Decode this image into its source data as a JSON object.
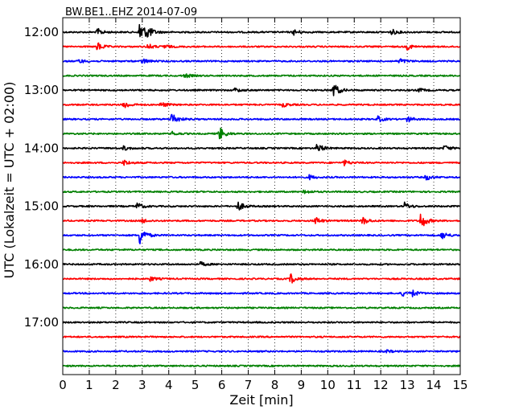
{
  "chart_data": {
    "type": "line",
    "title": "BW.BE1..EHZ 2014-07-09",
    "xlabel": "Zeit  [min]",
    "ylabel": "UTC (Lokalzeit = UTC + 02:00)",
    "xlim": [
      0,
      15
    ],
    "x_ticks": [
      0,
      1,
      2,
      3,
      4,
      5,
      6,
      7,
      8,
      9,
      10,
      11,
      12,
      13,
      14,
      15
    ],
    "y_ticks": [
      "12:00",
      "13:00",
      "14:00",
      "15:00",
      "16:00",
      "17:00"
    ],
    "grid": "vertical dotted",
    "color_cycle": [
      "#000000",
      "#ff0000",
      "#0000ff",
      "#008000"
    ],
    "series": [
      {
        "start": "12:00",
        "color": "#000000",
        "events": [
          [
            1.3,
            0.5
          ],
          [
            2.9,
            1.8
          ],
          [
            3.2,
            0.6
          ],
          [
            8.7,
            0.4
          ],
          [
            12.4,
            0.4
          ]
        ]
      },
      {
        "start": "12:15",
        "color": "#ff0000",
        "events": [
          [
            1.3,
            0.6
          ],
          [
            3.2,
            0.4
          ],
          [
            3.8,
            0.3
          ],
          [
            13.0,
            0.4
          ]
        ]
      },
      {
        "start": "12:30",
        "color": "#0000ff",
        "events": [
          [
            0.6,
            0.3
          ],
          [
            3.0,
            0.4
          ],
          [
            12.7,
            0.4
          ]
        ]
      },
      {
        "start": "12:45",
        "color": "#008000",
        "events": [
          [
            4.6,
            0.3
          ]
        ]
      },
      {
        "start": "13:00",
        "color": "#000000",
        "events": [
          [
            6.5,
            0.3
          ],
          [
            10.2,
            1.1
          ],
          [
            13.4,
            0.3
          ]
        ]
      },
      {
        "start": "13:15",
        "color": "#ff0000",
        "events": [
          [
            2.3,
            0.6
          ],
          [
            3.7,
            0.4
          ],
          [
            8.3,
            0.3
          ]
        ]
      },
      {
        "start": "13:30",
        "color": "#0000ff",
        "events": [
          [
            4.1,
            1.0
          ],
          [
            11.9,
            0.4
          ],
          [
            13.0,
            0.4
          ]
        ]
      },
      {
        "start": "13:45",
        "color": "#008000",
        "events": [
          [
            4.1,
            0.3
          ],
          [
            5.9,
            1.0
          ]
        ]
      },
      {
        "start": "14:00",
        "color": "#000000",
        "events": [
          [
            2.3,
            0.3
          ],
          [
            9.6,
            0.7
          ],
          [
            14.4,
            0.4
          ]
        ]
      },
      {
        "start": "14:15",
        "color": "#ff0000",
        "events": [
          [
            2.3,
            0.4
          ],
          [
            10.6,
            0.4
          ]
        ]
      },
      {
        "start": "14:30",
        "color": "#0000ff",
        "events": [
          [
            9.3,
            0.3
          ],
          [
            13.7,
            0.4
          ]
        ]
      },
      {
        "start": "14:45",
        "color": "#008000",
        "events": [
          [
            9.1,
            0.3
          ]
        ]
      },
      {
        "start": "15:00",
        "color": "#000000",
        "events": [
          [
            2.8,
            0.5
          ],
          [
            6.6,
            0.7
          ],
          [
            12.9,
            0.5
          ]
        ]
      },
      {
        "start": "15:15",
        "color": "#ff0000",
        "events": [
          [
            3.0,
            0.3
          ],
          [
            9.5,
            0.6
          ],
          [
            11.3,
            0.6
          ],
          [
            13.5,
            1.2
          ]
        ]
      },
      {
        "start": "15:30",
        "color": "#0000ff",
        "events": [
          [
            2.9,
            1.4
          ],
          [
            14.3,
            0.6
          ]
        ]
      },
      {
        "start": "15:45",
        "color": "#008000",
        "events": []
      },
      {
        "start": "16:00",
        "color": "#000000",
        "events": [
          [
            5.2,
            0.3
          ]
        ]
      },
      {
        "start": "16:15",
        "color": "#ff0000",
        "events": [
          [
            3.3,
            0.3
          ],
          [
            8.6,
            0.7
          ]
        ]
      },
      {
        "start": "16:30",
        "color": "#0000ff",
        "events": [
          [
            12.8,
            0.4
          ],
          [
            13.2,
            0.4
          ]
        ]
      },
      {
        "start": "16:45",
        "color": "#008000",
        "events": []
      },
      {
        "start": "17:00",
        "color": "#000000",
        "events": []
      },
      {
        "start": "17:15",
        "color": "#ff0000",
        "events": []
      },
      {
        "start": "17:30",
        "color": "#0000ff",
        "events": [
          [
            12.2,
            0.2
          ]
        ]
      },
      {
        "start": "17:45",
        "color": "#008000",
        "events": []
      }
    ]
  }
}
